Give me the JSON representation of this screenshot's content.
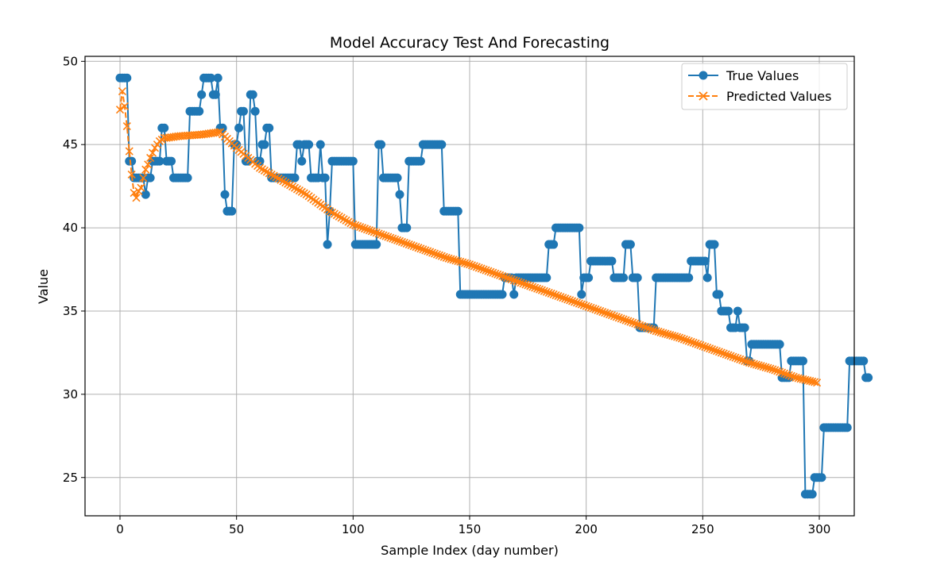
{
  "chart_data": {
    "type": "line",
    "title": "Model Accuracy Test And Forecasting",
    "xlabel": "Sample Index (day number)",
    "ylabel": "Value",
    "xlim": [
      -15,
      315
    ],
    "ylim": [
      22.7,
      50.3
    ],
    "xticks": [
      0,
      50,
      100,
      150,
      200,
      250,
      300
    ],
    "yticks": [
      25,
      30,
      35,
      40,
      45,
      50
    ],
    "grid": true,
    "legend_position": "top-right",
    "colors": {
      "true": "#1f77b4",
      "pred": "#ff7f0e",
      "grid": "#b0b0b0"
    },
    "series": [
      {
        "name": "True Values",
        "style": "solid-circle",
        "values": [
          49,
          49,
          49,
          49,
          44,
          44,
          43,
          43,
          43,
          43,
          43,
          42,
          43,
          43,
          44,
          44,
          44,
          44,
          46,
          46,
          44,
          44,
          44,
          43,
          43,
          43,
          43,
          43,
          43,
          43,
          47,
          47,
          47,
          47,
          47,
          48,
          49,
          49,
          49,
          49,
          48,
          48,
          49,
          46,
          46,
          42,
          41,
          41,
          41,
          45,
          45,
          46,
          47,
          47,
          44,
          44,
          48,
          48,
          47,
          44,
          44,
          45,
          45,
          46,
          46,
          43,
          43,
          43,
          43,
          43,
          43,
          43,
          43,
          43,
          43,
          43,
          45,
          45,
          44,
          45,
          45,
          45,
          43,
          43,
          43,
          43,
          45,
          43,
          43,
          39,
          41,
          44,
          44,
          44,
          44,
          44,
          44,
          44,
          44,
          44,
          44,
          39,
          39,
          39,
          39,
          39,
          39,
          39,
          39,
          39,
          39,
          45,
          45,
          43,
          43,
          43,
          43,
          43,
          43,
          43,
          42,
          40,
          40,
          40,
          44,
          44,
          44,
          44,
          44,
          44,
          45,
          45,
          45,
          45,
          45,
          45,
          45,
          45,
          45,
          41,
          41,
          41,
          41,
          41,
          41,
          41,
          36,
          36,
          36,
          36,
          36,
          36,
          36,
          36,
          36,
          36,
          36,
          36,
          36,
          36,
          36,
          36,
          36,
          36,
          36,
          37,
          37,
          37,
          37,
          36,
          37,
          37,
          37,
          37,
          37,
          37,
          37,
          37,
          37,
          37,
          37,
          37,
          37,
          37,
          39,
          39,
          39,
          40,
          40,
          40,
          40,
          40,
          40,
          40,
          40,
          40,
          40,
          40,
          36,
          37,
          37,
          37,
          38,
          38,
          38,
          38,
          38,
          38,
          38,
          38,
          38,
          38,
          37,
          37,
          37,
          37,
          37,
          39,
          39,
          39,
          37,
          37,
          37,
          34,
          34,
          34,
          34,
          34,
          34,
          34,
          37,
          37,
          37,
          37,
          37,
          37,
          37,
          37,
          37,
          37,
          37,
          37,
          37,
          37,
          37,
          38,
          38,
          38,
          38,
          38,
          38,
          38,
          37,
          39,
          39,
          39,
          36,
          36,
          35,
          35,
          35,
          35,
          34,
          34,
          34,
          35,
          34,
          34,
          34,
          32,
          32,
          33,
          33,
          33,
          33,
          33,
          33,
          33,
          33,
          33,
          33,
          33,
          33,
          33,
          31,
          31,
          31,
          31,
          32,
          32,
          32,
          32,
          32,
          32,
          24,
          24,
          24,
          24,
          25,
          25,
          25,
          25,
          28,
          28,
          28,
          28,
          28,
          28,
          28,
          28,
          28,
          28,
          28,
          32,
          32,
          32,
          32,
          32,
          32,
          32,
          31,
          31
        ],
        "x_start": 0
      },
      {
        "name": "Predicted Values",
        "style": "dashed-x",
        "x": [
          0,
          1,
          2,
          3,
          4,
          5,
          6,
          7,
          8,
          9,
          10,
          11,
          12,
          13,
          14,
          15,
          16,
          17,
          18,
          19,
          20,
          25,
          30,
          35,
          40,
          43,
          50,
          60,
          70,
          80,
          90,
          95,
          100,
          110,
          120,
          130,
          140,
          150,
          160,
          170,
          180,
          190,
          200,
          210,
          220,
          230,
          240,
          250,
          260,
          270,
          280,
          290,
          299
        ],
        "values": [
          47.1,
          48.2,
          47.3,
          46.1,
          44.6,
          43.2,
          42.1,
          41.8,
          42.2,
          42.4,
          43.0,
          43.5,
          43.8,
          44.2,
          44.5,
          44.8,
          45.0,
          45.2,
          45.3,
          45.4,
          45.4,
          45.5,
          45.55,
          45.6,
          45.7,
          45.75,
          44.8,
          43.6,
          42.8,
          42.0,
          41.0,
          40.6,
          40.2,
          39.7,
          39.2,
          38.7,
          38.2,
          37.8,
          37.3,
          36.8,
          36.3,
          35.8,
          35.3,
          34.8,
          34.3,
          33.8,
          33.4,
          32.9,
          32.4,
          31.9,
          31.5,
          31.0,
          30.7
        ]
      }
    ]
  }
}
